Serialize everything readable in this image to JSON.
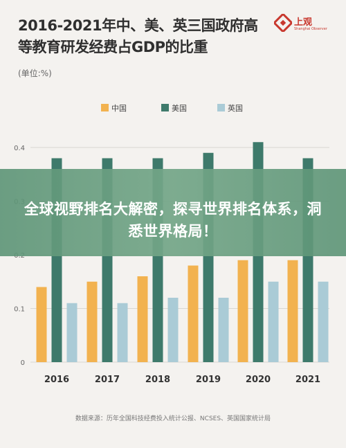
{
  "header": {
    "title": "2016-2021年中、美、英三国政府高等教育研发经费占GDP的比重",
    "unit": "(单位:%)",
    "logo_name": "上观",
    "logo_sub": "Shanghai Observer"
  },
  "banner": {
    "text": "全球视野排名大解密，探寻世界排名体系，洞悉世界格局！"
  },
  "source": "数据来源：历年全国科技经费投入统计公报、NCSES、英国国家统计局",
  "colors": {
    "china": "#f2b24f",
    "usa": "#3e7a6b",
    "uk": "#aacbd6",
    "brand": "#c8382e"
  },
  "chart_data": {
    "type": "bar",
    "categories": [
      "2016",
      "2017",
      "2018",
      "2019",
      "2020",
      "2021"
    ],
    "series": [
      {
        "name": "中国",
        "values": [
          0.14,
          0.15,
          0.16,
          0.18,
          0.19,
          0.19
        ]
      },
      {
        "name": "美国",
        "values": [
          0.38,
          0.38,
          0.38,
          0.39,
          0.41,
          0.38
        ]
      },
      {
        "name": "英国",
        "values": [
          0.11,
          0.11,
          0.12,
          0.12,
          0.15,
          0.15
        ]
      }
    ],
    "yticks": [
      "0",
      "0.1",
      "0.2",
      "0.3",
      "0.4"
    ],
    "ylim": [
      0,
      0.42
    ],
    "grid": true,
    "legend": "top-center"
  }
}
